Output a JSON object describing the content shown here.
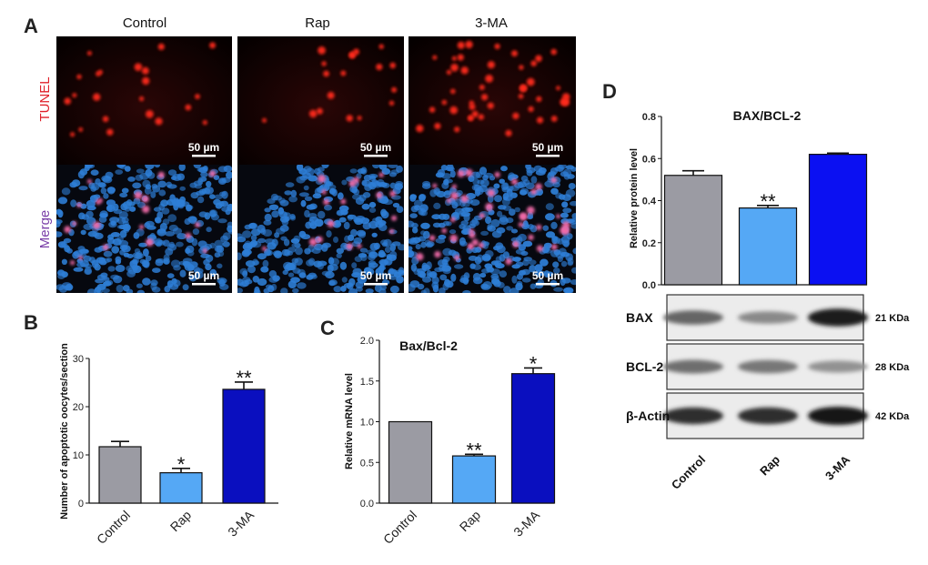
{
  "panel_letters": {
    "a": "A",
    "b": "B",
    "c": "C",
    "d": "D"
  },
  "micrographs": {
    "columns": [
      "Control",
      "Rap",
      "3-MA"
    ],
    "rows": [
      {
        "label": "TUNEL",
        "label_color": "#e0202a"
      },
      {
        "label": "Merge",
        "label_color": "#7a3fa8"
      }
    ],
    "scale_bar_label": "50 µm"
  },
  "colors": {
    "control": "#9b9ba3",
    "rap": "#55a8f5",
    "three_ma_b": "#0a0fbf",
    "three_ma_c": "#0a0fbf",
    "three_ma_d": "#0b10f2",
    "tunel_red": "#ff2a1a",
    "nuclei_blue": "#2e7ed6"
  },
  "chart_data": [
    {
      "type": "bar",
      "panel": "B",
      "title": "",
      "xlabel": "",
      "ylabel": "Number of apoptotic oocytes/section",
      "categories": [
        "Control",
        "Rap",
        "3-MA"
      ],
      "values": [
        11.7,
        6.3,
        23.6
      ],
      "errors": [
        1.1,
        0.9,
        1.5
      ],
      "significance": [
        "",
        "*",
        "**"
      ],
      "ylim": [
        0,
        30
      ],
      "yticks": [
        0,
        10,
        20,
        30
      ]
    },
    {
      "type": "bar",
      "panel": "C",
      "title": "Bax/Bcl-2",
      "xlabel": "",
      "ylabel": "Relative mRNA level",
      "categories": [
        "Control",
        "Rap",
        "3-MA"
      ],
      "values": [
        1.0,
        0.58,
        1.59
      ],
      "errors": [
        0.0,
        0.02,
        0.07
      ],
      "significance": [
        "",
        "**",
        "*"
      ],
      "ylim": [
        0,
        2.0
      ],
      "yticks": [
        "0.0",
        "0.5",
        "1.0",
        "1.5",
        "2.0"
      ]
    },
    {
      "type": "bar",
      "panel": "D",
      "title": "BAX/BCL-2",
      "xlabel": "",
      "ylabel": "Relative protein level",
      "categories": [
        "Control",
        "Rap",
        "3-MA"
      ],
      "values": [
        0.52,
        0.365,
        0.62
      ],
      "errors": [
        0.022,
        0.012,
        0.006
      ],
      "significance": [
        "",
        "**",
        ""
      ],
      "ylim": [
        0,
        0.8
      ],
      "yticks": [
        "0.0",
        "0.2",
        "0.4",
        "0.6",
        "0.8"
      ]
    }
  ],
  "western_blot": {
    "lanes": [
      "Control",
      "Rap",
      "3-MA"
    ],
    "rows": [
      {
        "label": "BAX",
        "kda": "21 KDa",
        "intensity": [
          0.55,
          0.35,
          0.95
        ]
      },
      {
        "label": "BCL-2",
        "kda": "28 KDa",
        "intensity": [
          0.5,
          0.45,
          0.3
        ]
      },
      {
        "label": "β-Actin",
        "kda": "42 KDa",
        "intensity": [
          0.85,
          0.85,
          1.0
        ]
      }
    ]
  }
}
